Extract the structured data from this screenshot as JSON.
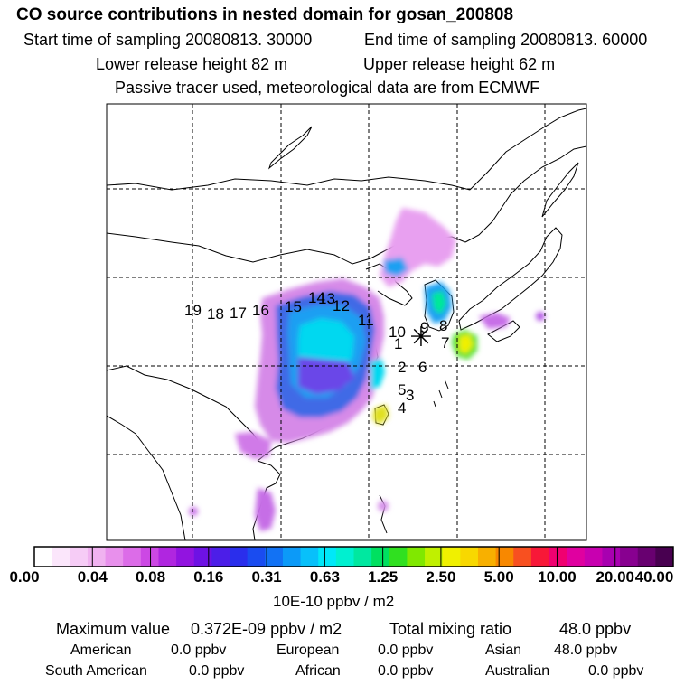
{
  "header": {
    "title": "CO  source contributions in nested domain for gosan_200808",
    "start_time": "Start time of sampling 20080813. 30000",
    "end_time": "End time of sampling 20080813. 60000",
    "lower_height": "Lower release height   82 m",
    "upper_height": "Upper release height   62 m",
    "info": "Passive tracer used, meteorological data are from ECMWF"
  },
  "map": {
    "receptor_marker": "✳",
    "labels": [
      "19",
      "18",
      "17",
      "16",
      "15",
      "14",
      "13",
      "12",
      "11",
      "10",
      "9",
      "8",
      "7",
      "1",
      "2",
      "6",
      "5",
      "3",
      "4"
    ]
  },
  "colorbar": {
    "colors": [
      "#ffffff",
      "#fbe6fb",
      "#f6ccf6",
      "#f0b2f0",
      "#e890ec",
      "#dc6ce8",
      "#cc48e4",
      "#b026e0",
      "#9214e0",
      "#6e12e4",
      "#4c1ee8",
      "#2a2eec",
      "#1a4cf0",
      "#1272f4",
      "#0c9af8",
      "#08c0fa",
      "#00e8f8",
      "#00f0d0",
      "#00e8a0",
      "#00e060",
      "#30e020",
      "#80e800",
      "#c0f000",
      "#f0f000",
      "#f8d800",
      "#f8b000",
      "#f88800",
      "#f85020",
      "#f81838",
      "#f00070",
      "#e000a0",
      "#c800b0",
      "#a800b0",
      "#880090",
      "#680070",
      "#480050"
    ],
    "ticks": [
      "0.00",
      "0.04",
      "0.08",
      "0.16",
      "0.31",
      "0.63",
      "1.25",
      "2.50",
      "5.00",
      "10.00",
      "20.00",
      "40.00"
    ],
    "units": "10E-10 ppbv / m2"
  },
  "summary": {
    "max_label": "Maximum value",
    "max_value": "0.372E-09 ppbv / m2",
    "total_label": "Total mixing ratio",
    "total_value": "48.0 ppbv",
    "regions": [
      {
        "name": "American",
        "value": "0.0 ppbv"
      },
      {
        "name": "European",
        "value": "0.0 ppbv"
      },
      {
        "name": "Asian",
        "value": "48.0 ppbv"
      },
      {
        "name": "South American",
        "value": "0.0 ppbv"
      },
      {
        "name": "African",
        "value": "0.0 ppbv"
      },
      {
        "name": "Australian",
        "value": "0.0 ppbv"
      }
    ]
  }
}
